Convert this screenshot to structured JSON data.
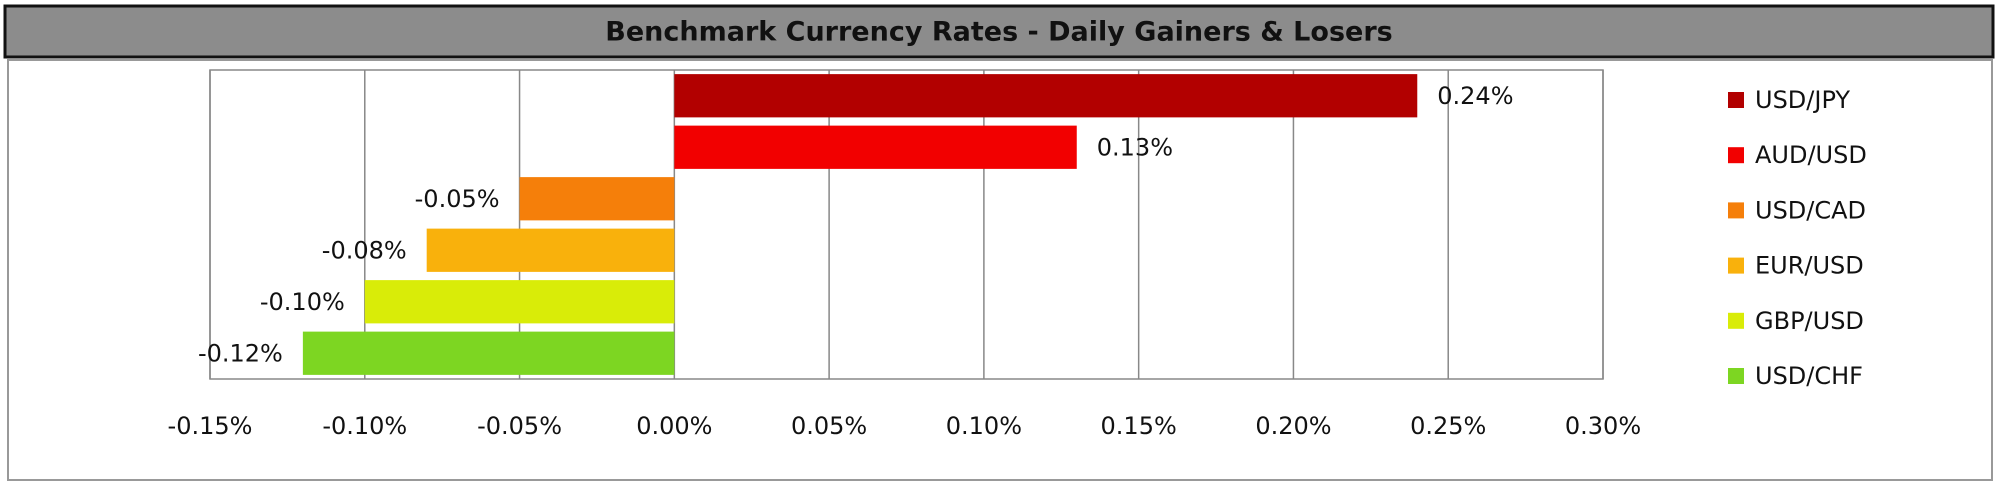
{
  "chart_data": {
    "type": "hbar",
    "title": "Benchmark Currency Rates - Daily Gainers & Losers",
    "categories": [
      "USD/JPY",
      "AUD/USD",
      "USD/CAD",
      "EUR/USD",
      "GBP/USD",
      "USD/CHF"
    ],
    "values": [
      0.24,
      0.13,
      -0.05,
      -0.08,
      -0.1,
      -0.12
    ],
    "value_labels": [
      "0.24%",
      "0.13%",
      "-0.05%",
      "-0.08%",
      "-0.10%",
      "-0.12%"
    ],
    "colors": [
      "#b20000",
      "#f20000",
      "#f57f0a",
      "#f9b10c",
      "#d9ec08",
      "#7dd622"
    ],
    "xlim": [
      -0.15,
      0.3
    ],
    "xticks": [
      {
        "value": -0.15,
        "label": "-0.15%"
      },
      {
        "value": -0.1,
        "label": "-0.10%"
      },
      {
        "value": -0.05,
        "label": "-0.05%"
      },
      {
        "value": 0.0,
        "label": "0.00%"
      },
      {
        "value": 0.05,
        "label": "0.05%"
      },
      {
        "value": 0.1,
        "label": "0.10%"
      },
      {
        "value": 0.15,
        "label": "0.15%"
      },
      {
        "value": 0.2,
        "label": "0.20%"
      },
      {
        "value": 0.25,
        "label": "0.25%"
      },
      {
        "value": 0.3,
        "label": "0.30%"
      }
    ],
    "grid": true,
    "legend": "right"
  }
}
